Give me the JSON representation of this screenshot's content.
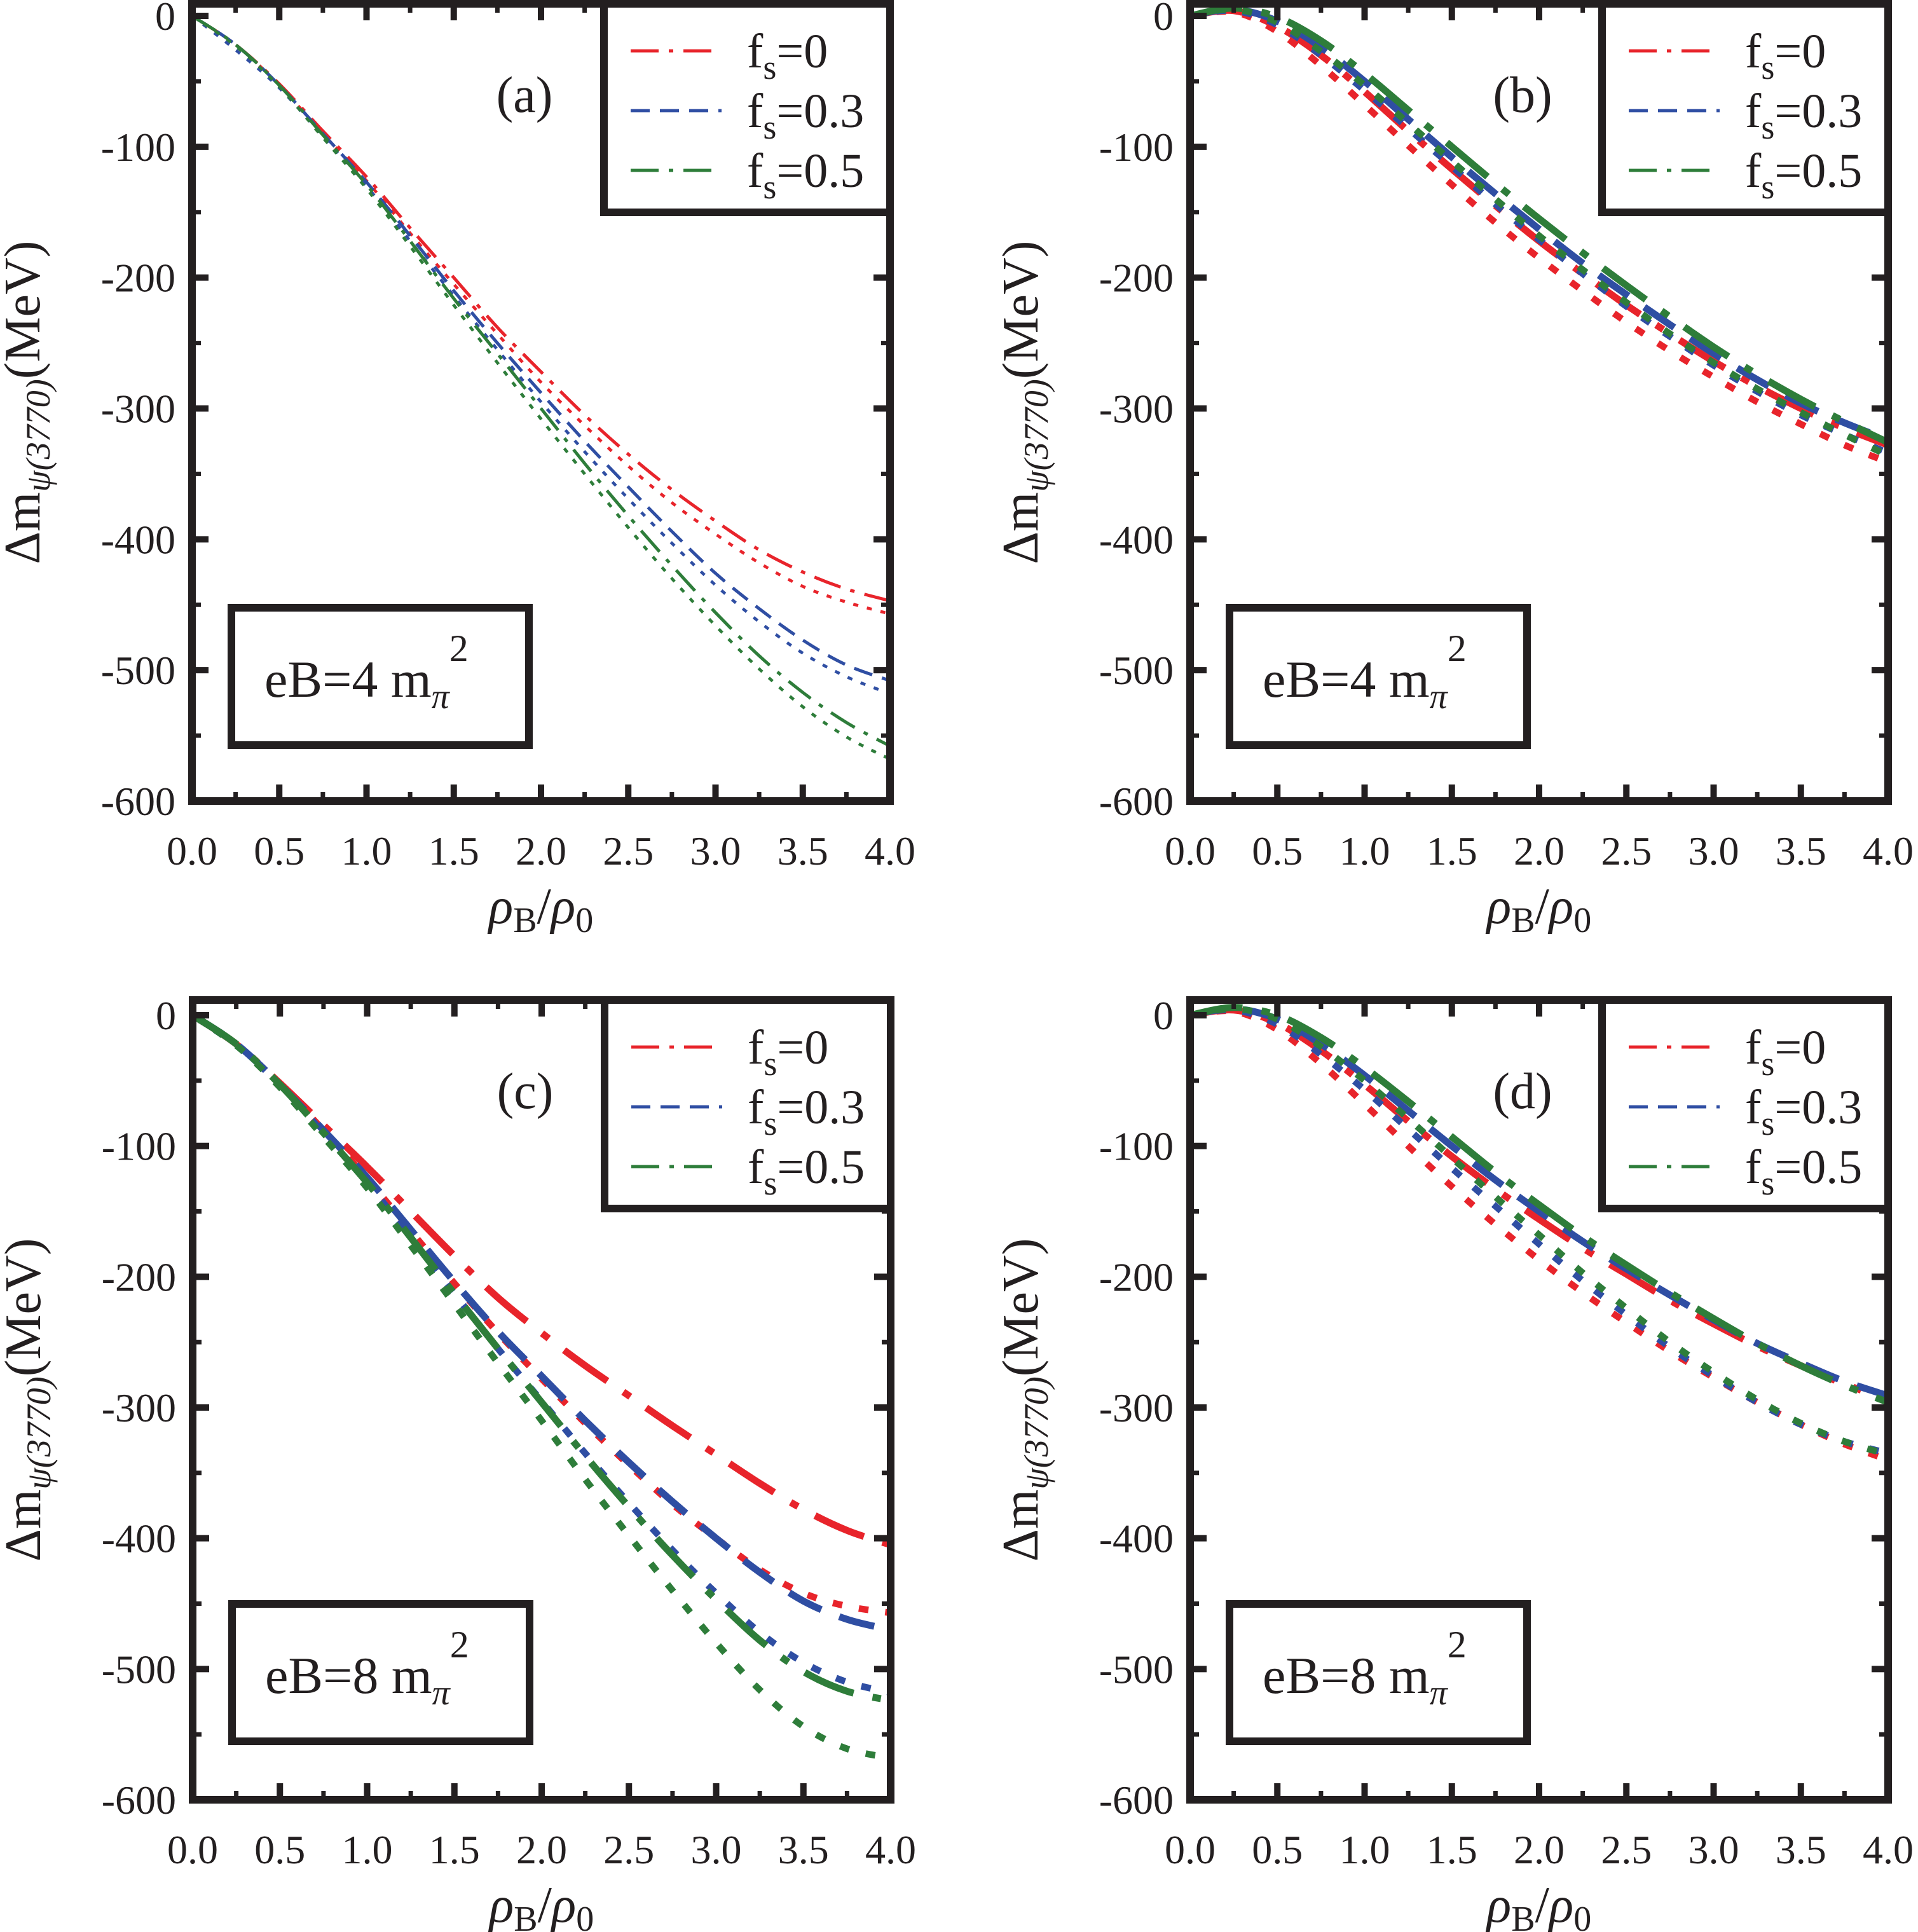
{
  "figure": {
    "x_axis_label": {
      "main": "ρ",
      "sub1": "B",
      "slash": "/",
      "main2": "ρ",
      "sub2": "0"
    },
    "y_axis_label": {
      "delta": "Δm",
      "sub": "ψ(3770)",
      "unit": "(MeV)"
    },
    "legend_prefix": "f",
    "legend_sub": "s"
  },
  "colors": {
    "fs_0": "#e8242b",
    "fs_0.3": "#2f4ea3",
    "fs_0.5": "#2e7d3a",
    "axis": "#231f20"
  },
  "chart_data": [
    {
      "type": "line",
      "panel": "(a)",
      "annotation": {
        "text": "eB=4 m",
        "sub": "π",
        "sup": "2"
      },
      "xlabel": "ρB/ρ0",
      "ylabel": "Δmψ(3770)(MeV)",
      "xlim": [
        0,
        4.0
      ],
      "ylim": [
        -600,
        0
      ],
      "xticks": [
        "0.0",
        "0.5",
        "1.0",
        "1.5",
        "2.0",
        "2.5",
        "3.0",
        "3.5",
        "4.0"
      ],
      "yticks": [
        "0",
        "-100",
        "-200",
        "-300",
        "-400",
        "-500",
        "-600"
      ],
      "legend": [
        "fs=0",
        "fs=0.3",
        "fs=0.5"
      ],
      "legend_placement": "top-right",
      "line_weight": "thin",
      "x": [
        0,
        0.25,
        0.5,
        0.75,
        1.0,
        1.25,
        1.5,
        1.75,
        2.0,
        2.25,
        2.5,
        2.75,
        3.0,
        3.25,
        3.5,
        3.75,
        4.0
      ],
      "series": [
        {
          "name": "fs=0",
          "style": "dash-dot",
          "color_key": "fs_0",
          "values": [
            0,
            -22,
            -52,
            -88,
            -123,
            -162,
            -200,
            -238,
            -272,
            -305,
            -335,
            -362,
            -386,
            -408,
            -425,
            -438,
            -447
          ]
        },
        {
          "name": "fs=0 (dotted)",
          "style": "dotted",
          "color_key": "fs_0",
          "values": [
            0,
            -22,
            -53,
            -90,
            -126,
            -166,
            -205,
            -243,
            -280,
            -313,
            -344,
            -372,
            -396,
            -418,
            -436,
            -448,
            -457
          ]
        },
        {
          "name": "fs=0.3",
          "style": "dashed",
          "color_key": "fs_0.3",
          "values": [
            0,
            -22,
            -53,
            -90,
            -127,
            -168,
            -210,
            -250,
            -288,
            -325,
            -360,
            -394,
            -426,
            -453,
            -477,
            -496,
            -508
          ]
        },
        {
          "name": "fs=0.3 (dotted)",
          "style": "dotted",
          "color_key": "fs_0.3",
          "values": [
            0,
            -26,
            -55,
            -92,
            -130,
            -172,
            -214,
            -255,
            -295,
            -333,
            -369,
            -403,
            -435,
            -463,
            -487,
            -505,
            -518
          ]
        },
        {
          "name": "fs=0.5",
          "style": "dash-dot",
          "color_key": "fs_0.5",
          "values": [
            0,
            -22,
            -53,
            -91,
            -129,
            -172,
            -216,
            -258,
            -300,
            -342,
            -382,
            -420,
            -456,
            -489,
            -517,
            -540,
            -558
          ]
        },
        {
          "name": "fs=0.5 (dotted)",
          "style": "dotted",
          "color_key": "fs_0.5",
          "values": [
            0,
            -23,
            -54,
            -93,
            -132,
            -176,
            -221,
            -265,
            -308,
            -350,
            -391,
            -430,
            -466,
            -499,
            -528,
            -551,
            -568
          ]
        }
      ]
    },
    {
      "type": "line",
      "panel": "(b)",
      "annotation": {
        "text": "eB=4 m",
        "sub": "π",
        "sup": "2"
      },
      "xlabel": "ρB/ρ0",
      "ylabel": "Δmψ(3770)(MeV)",
      "xlim": [
        0,
        4.0
      ],
      "ylim": [
        -600,
        0
      ],
      "xticks": [
        "0.0",
        "0.5",
        "1.0",
        "1.5",
        "2.0",
        "2.5",
        "3.0",
        "3.5",
        "4.0"
      ],
      "yticks": [
        "0",
        "-100",
        "-200",
        "-300",
        "-400",
        "-500",
        "-600"
      ],
      "legend": [
        "fs=0",
        "fs=0.3",
        "fs=0.5"
      ],
      "legend_placement": "top-right",
      "line_weight": "thick",
      "x": [
        0,
        0.25,
        0.5,
        0.75,
        1.0,
        1.25,
        1.5,
        1.75,
        2.0,
        2.25,
        2.5,
        2.75,
        3.0,
        3.25,
        3.5,
        3.75,
        4.0
      ],
      "series": [
        {
          "name": "fs=0",
          "style": "dash-dot",
          "color_key": "fs_0",
          "values": [
            0,
            4,
            -8,
            -30,
            -58,
            -88,
            -117,
            -145,
            -172,
            -197,
            -221,
            -243,
            -264,
            -283,
            -300,
            -315,
            -328
          ]
        },
        {
          "name": "fs=0 (dotted)",
          "style": "dotted",
          "color_key": "fs_0",
          "values": [
            0,
            3,
            -12,
            -38,
            -68,
            -99,
            -129,
            -158,
            -185,
            -210,
            -234,
            -256,
            -276,
            -295,
            -312,
            -328,
            -341
          ]
        },
        {
          "name": "fs=0.3",
          "style": "dashed",
          "color_key": "fs_0.3",
          "values": [
            0,
            5,
            -4,
            -24,
            -50,
            -79,
            -108,
            -136,
            -163,
            -189,
            -213,
            -236,
            -258,
            -278,
            -296,
            -311,
            -324
          ]
        },
        {
          "name": "fs=0.3 (dotted)",
          "style": "dotted",
          "color_key": "fs_0.3",
          "values": [
            0,
            4,
            -7,
            -30,
            -57,
            -86,
            -115,
            -144,
            -171,
            -197,
            -222,
            -245,
            -267,
            -287,
            -305,
            -320,
            -334
          ]
        },
        {
          "name": "fs=0.5",
          "style": "dash-dot",
          "color_key": "fs_0.5",
          "values": [
            0,
            6,
            -1,
            -19,
            -44,
            -72,
            -100,
            -128,
            -155,
            -181,
            -206,
            -230,
            -253,
            -274,
            -293,
            -310,
            -326
          ]
        },
        {
          "name": "fs=0.5 (dotted)",
          "style": "dotted",
          "color_key": "fs_0.5",
          "values": [
            0,
            5,
            -5,
            -27,
            -53,
            -82,
            -111,
            -140,
            -168,
            -194,
            -219,
            -243,
            -265,
            -285,
            -303,
            -320,
            -336
          ]
        }
      ]
    },
    {
      "type": "line",
      "panel": "(c)",
      "annotation": {
        "text": "eB=8 m",
        "sub": "π",
        "sup": "2"
      },
      "xlabel": "ρB/ρ0",
      "ylabel": "Δmψ(3770)(MeV)",
      "xlim": [
        0,
        4.0
      ],
      "ylim": [
        -600,
        0
      ],
      "xticks": [
        "0.0",
        "0.5",
        "1.0",
        "1.5",
        "2.0",
        "2.5",
        "3.0",
        "3.5",
        "4.0"
      ],
      "yticks": [
        "0",
        "-100",
        "-200",
        "-300",
        "-400",
        "-500",
        "-600"
      ],
      "legend": [
        "fs=0",
        "fs=0.3",
        "fs=0.5"
      ],
      "legend_placement": "top-right",
      "line_weight": "thick",
      "x": [
        0,
        0.25,
        0.5,
        0.75,
        1.0,
        1.25,
        1.5,
        1.75,
        2.0,
        2.25,
        2.5,
        2.75,
        3.0,
        3.25,
        3.5,
        3.75,
        4.0
      ],
      "series": [
        {
          "name": "fs=0",
          "style": "dash-dot",
          "color_key": "fs_0",
          "values": [
            0,
            -22,
            -52,
            -84,
            -116,
            -150,
            -184,
            -216,
            -243,
            -268,
            -291,
            -314,
            -336,
            -358,
            -378,
            -394,
            -405
          ]
        },
        {
          "name": "fs=0 (dotted)",
          "style": "dotted",
          "color_key": "fs_0",
          "values": [
            0,
            -22,
            -53,
            -88,
            -125,
            -165,
            -205,
            -243,
            -278,
            -312,
            -344,
            -374,
            -400,
            -424,
            -442,
            -452,
            -457
          ]
        },
        {
          "name": "fs=0.3",
          "style": "dashed",
          "color_key": "fs_0.3",
          "values": [
            0,
            -22,
            -53,
            -88,
            -124,
            -164,
            -204,
            -242,
            -276,
            -310,
            -342,
            -372,
            -400,
            -426,
            -448,
            -462,
            -470
          ]
        },
        {
          "name": "fs=0.3 (dotted)",
          "style": "dotted",
          "color_key": "fs_0.3",
          "values": [
            0,
            -23,
            -54,
            -90,
            -128,
            -170,
            -213,
            -255,
            -295,
            -335,
            -373,
            -409,
            -442,
            -472,
            -495,
            -510,
            -518
          ]
        },
        {
          "name": "fs=0.5",
          "style": "dash-dot",
          "color_key": "fs_0.5",
          "values": [
            0,
            -22,
            -53,
            -90,
            -128,
            -170,
            -213,
            -255,
            -296,
            -337,
            -376,
            -413,
            -447,
            -478,
            -502,
            -517,
            -524
          ]
        },
        {
          "name": "fs=0.5 (dotted)",
          "style": "dotted",
          "color_key": "fs_0.5",
          "values": [
            0,
            -23,
            -55,
            -93,
            -132,
            -176,
            -221,
            -266,
            -310,
            -355,
            -398,
            -440,
            -480,
            -516,
            -544,
            -561,
            -568
          ]
        }
      ]
    },
    {
      "type": "line",
      "panel": "(d)",
      "annotation": {
        "text": "eB=8 m",
        "sub": "π",
        "sup": "2"
      },
      "xlabel": "ρB/ρ0",
      "ylabel": "Δmψ(3770)(MeV)",
      "xlim": [
        0,
        4.0
      ],
      "ylim": [
        -600,
        0
      ],
      "xticks": [
        "0.0",
        "0.5",
        "1.0",
        "1.5",
        "2.0",
        "2.5",
        "3.0",
        "3.5",
        "4.0"
      ],
      "yticks": [
        "0",
        "-100",
        "-200",
        "-300",
        "-400",
        "-500",
        "-600"
      ],
      "legend": [
        "fs=0",
        "fs=0.3",
        "fs=0.5"
      ],
      "legend_placement": "top-right",
      "line_weight": "thick",
      "x": [
        0,
        0.25,
        0.5,
        0.75,
        1.0,
        1.25,
        1.5,
        1.75,
        2.0,
        2.25,
        2.5,
        2.75,
        3.0,
        3.25,
        3.5,
        3.75,
        4.0
      ],
      "series": [
        {
          "name": "fs=0",
          "style": "dash-dot",
          "color_key": "fs_0",
          "values": [
            0,
            4,
            -6,
            -27,
            -53,
            -81,
            -108,
            -133,
            -156,
            -178,
            -198,
            -218,
            -236,
            -253,
            -268,
            -282,
            -294
          ]
        },
        {
          "name": "fs=0 (dotted)",
          "style": "dotted",
          "color_key": "fs_0",
          "values": [
            0,
            3,
            -11,
            -37,
            -68,
            -100,
            -131,
            -160,
            -187,
            -212,
            -235,
            -257,
            -277,
            -296,
            -313,
            -328,
            -340
          ]
        },
        {
          "name": "fs=0.3",
          "style": "dashed",
          "color_key": "fs_0.3",
          "values": [
            0,
            5,
            -3,
            -22,
            -46,
            -73,
            -100,
            -126,
            -150,
            -173,
            -194,
            -214,
            -233,
            -251,
            -266,
            -280,
            -291
          ]
        },
        {
          "name": "fs=0.3 (dotted)",
          "style": "dotted",
          "color_key": "fs_0.3",
          "values": [
            0,
            4,
            -7,
            -30,
            -57,
            -87,
            -117,
            -146,
            -175,
            -203,
            -229,
            -254,
            -276,
            -296,
            -313,
            -326,
            -335
          ]
        },
        {
          "name": "fs=0.5",
          "style": "dash-dot",
          "color_key": "fs_0.5",
          "values": [
            0,
            6,
            0,
            -17,
            -40,
            -66,
            -93,
            -120,
            -145,
            -169,
            -191,
            -212,
            -232,
            -251,
            -268,
            -283,
            -296
          ]
        },
        {
          "name": "fs=0.5 (dotted)",
          "style": "dotted",
          "color_key": "fs_0.5",
          "values": [
            0,
            5,
            -3,
            -24,
            -50,
            -79,
            -109,
            -139,
            -168,
            -197,
            -224,
            -250,
            -273,
            -294,
            -312,
            -326,
            -336
          ]
        }
      ]
    }
  ]
}
